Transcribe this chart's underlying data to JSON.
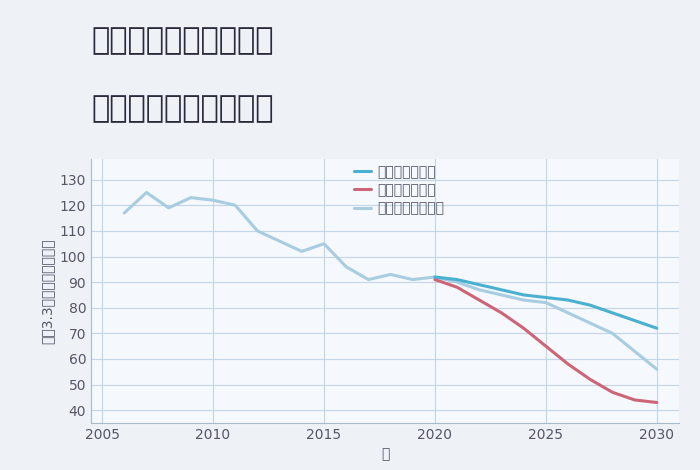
{
  "title_line1": "兵庫県加西市繁昌町の",
  "title_line2": "中古戸建ての価格推移",
  "xlabel": "年",
  "ylabel": "坪（3.3㎡）単価（万円）",
  "ylim": [
    35,
    138
  ],
  "xlim": [
    2004.5,
    2031
  ],
  "yticks": [
    40,
    50,
    60,
    70,
    80,
    90,
    100,
    110,
    120,
    130
  ],
  "xticks": [
    2005,
    2010,
    2015,
    2020,
    2025,
    2030
  ],
  "bg_color": "#eef2f7",
  "plot_bg_color": "#f5f8fc",
  "grid_color": "#c5d5e8",
  "good_color": "#4ab0d0",
  "bad_color": "#cc6677",
  "normal_color": "#a8cce0",
  "good_label": "グッドシナリオ",
  "bad_label": "バッドシナリオ",
  "normal_label": "ノーマルシナリオ",
  "normal_x": [
    2006,
    2007,
    2008,
    2009,
    2010,
    2011,
    2012,
    2013,
    2014,
    2015,
    2016,
    2017,
    2018,
    2019,
    2020
  ],
  "normal_y": [
    117,
    125,
    119,
    123,
    122,
    120,
    110,
    106,
    102,
    105,
    96,
    91,
    93,
    91,
    92
  ],
  "normal_future_x": [
    2020,
    2021,
    2022,
    2023,
    2024,
    2025,
    2026,
    2027,
    2028,
    2029,
    2030
  ],
  "normal_future_y": [
    92,
    90,
    87,
    85,
    83,
    82,
    78,
    74,
    70,
    63,
    56
  ],
  "good_x": [
    2020,
    2021,
    2022,
    2023,
    2024,
    2025,
    2026,
    2027,
    2028,
    2029,
    2030
  ],
  "good_y": [
    92,
    91,
    89,
    87,
    85,
    84,
    83,
    81,
    78,
    75,
    72
  ],
  "bad_x": [
    2020,
    2021,
    2022,
    2023,
    2024,
    2025,
    2026,
    2027,
    2028,
    2029,
    2030
  ],
  "bad_y": [
    91,
    88,
    83,
    78,
    72,
    65,
    58,
    52,
    47,
    44,
    43
  ],
  "title_fontsize": 22,
  "axis_label_fontsize": 10,
  "tick_fontsize": 10,
  "legend_fontsize": 10
}
